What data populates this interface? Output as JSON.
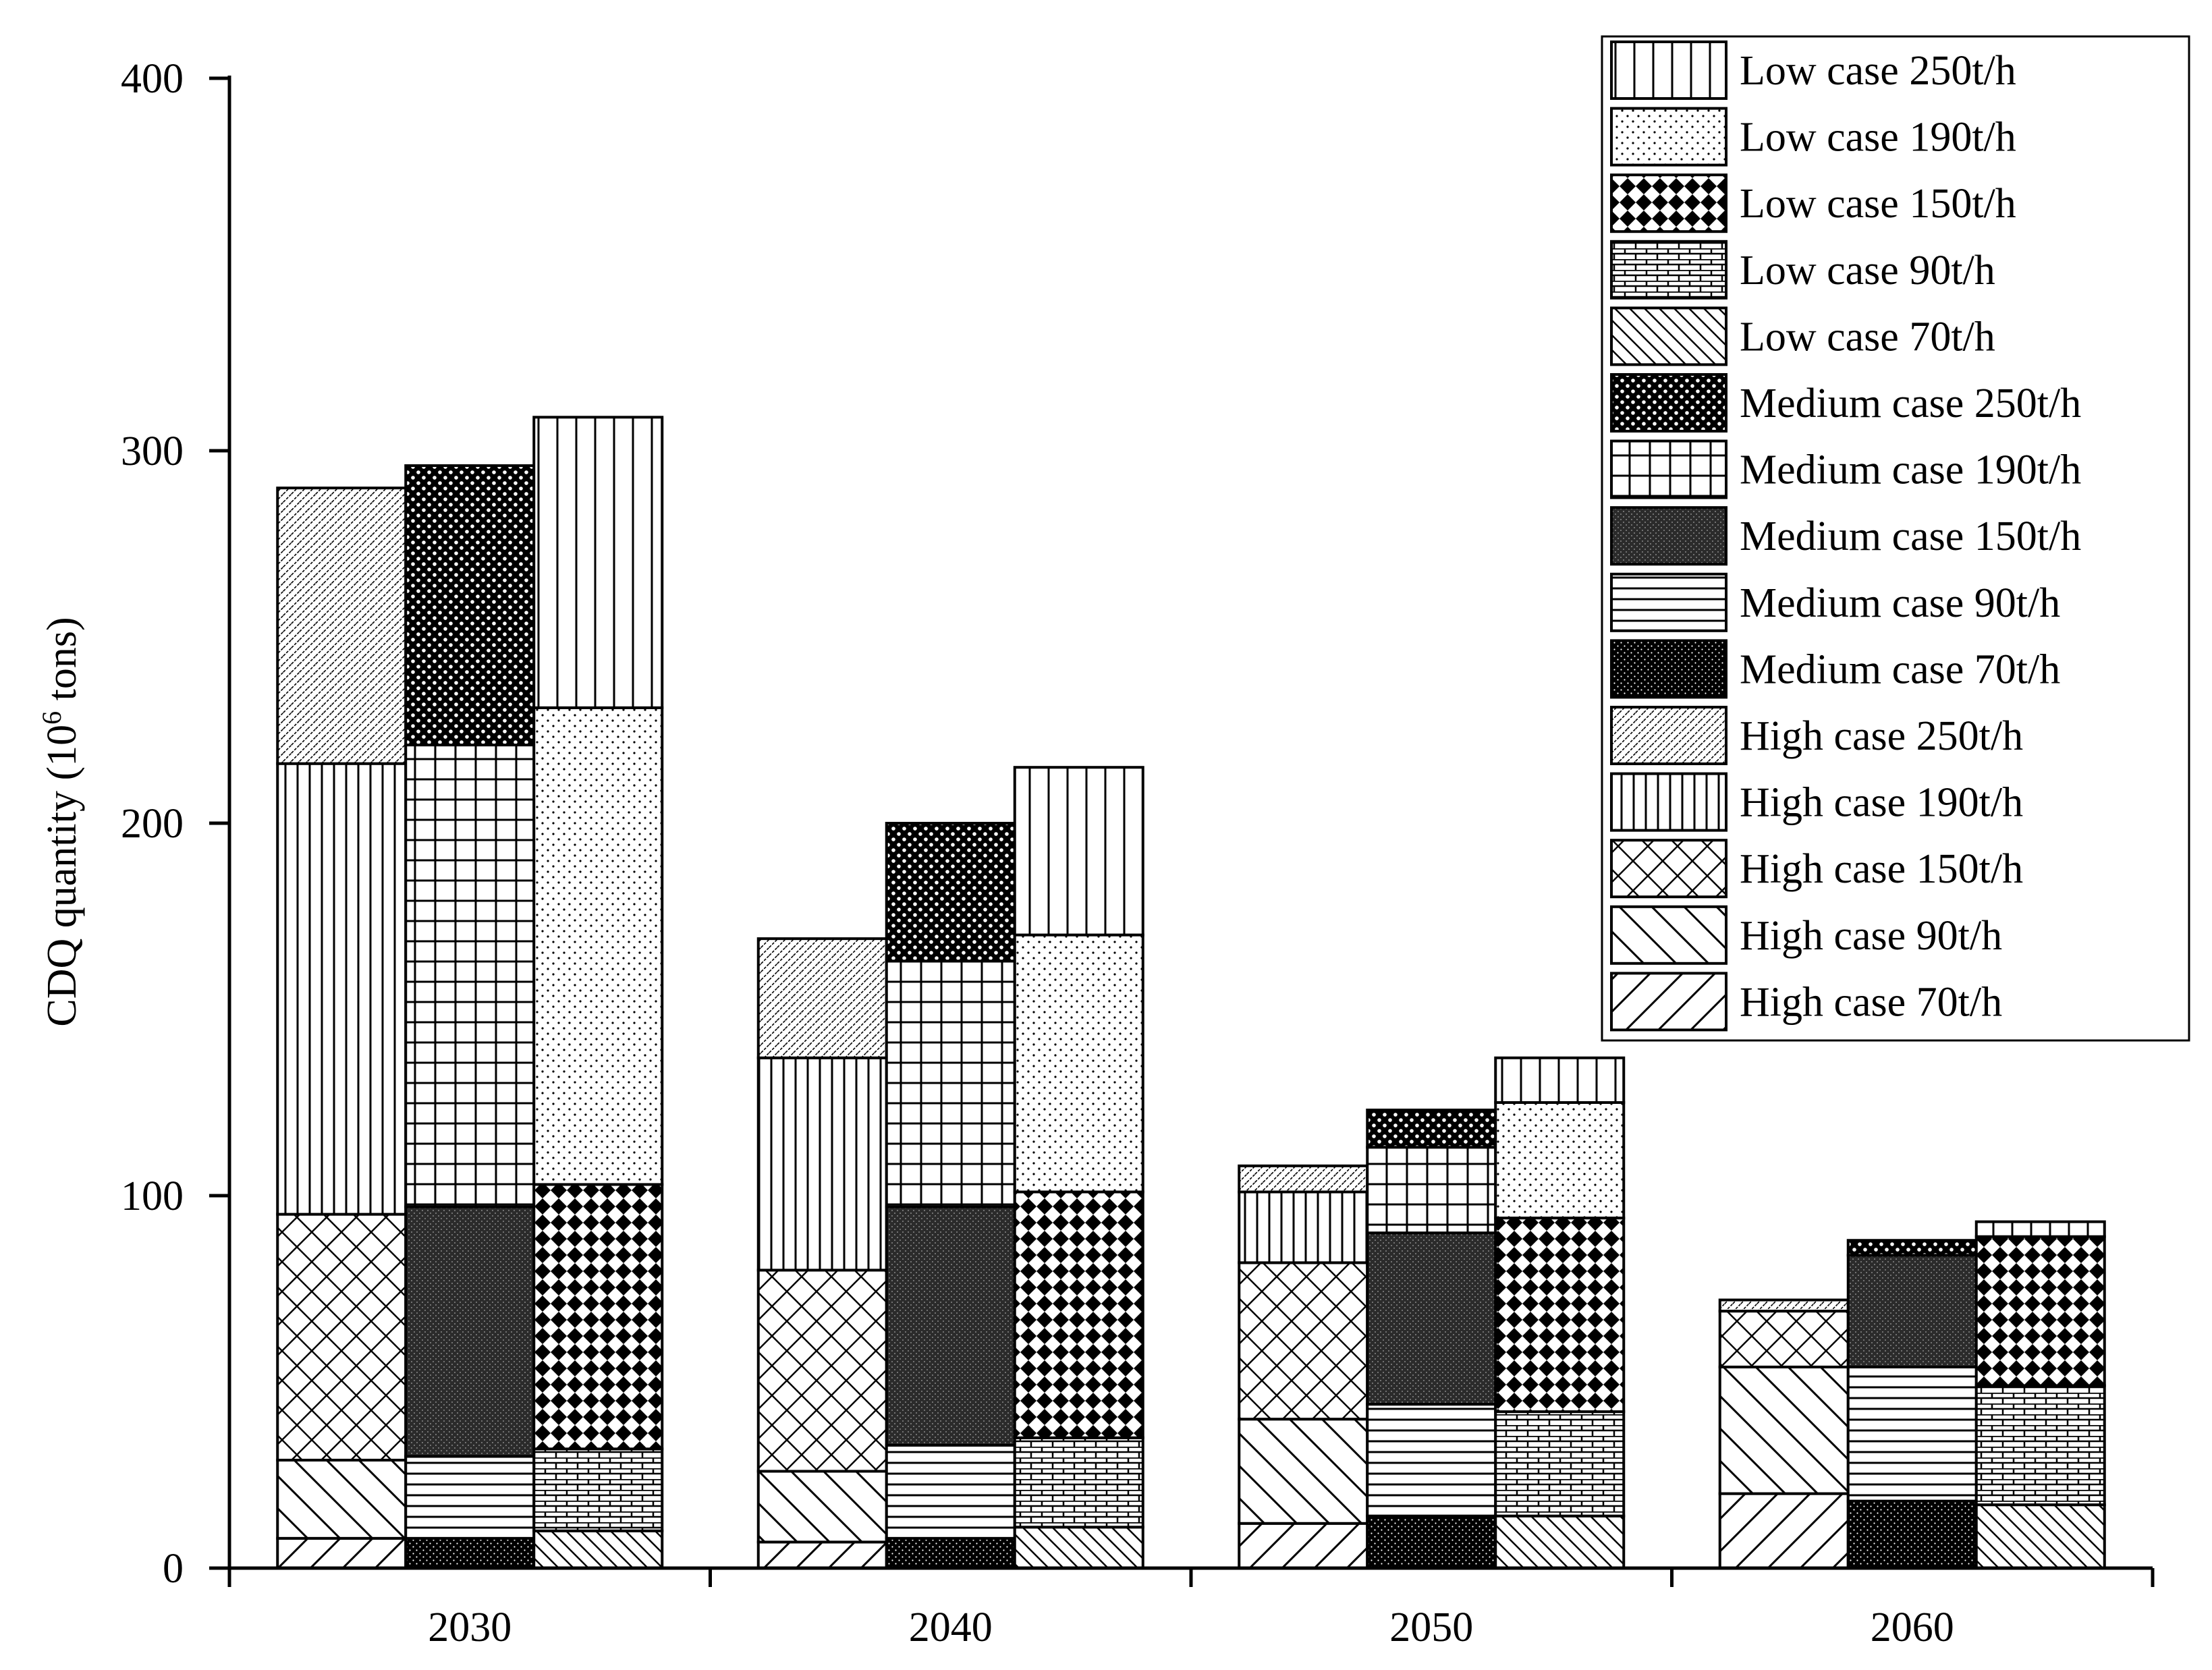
{
  "chart_data": {
    "type": "bar",
    "stacked": true,
    "title": "",
    "xlabel": "",
    "ylabel": "CDQ quantity (10",
    "ylabel_sup": "6",
    "ylabel_unit": " tons)",
    "ylim": [
      0,
      400
    ],
    "yticks": [
      "0",
      "100",
      "200",
      "300",
      "400"
    ],
    "categories": [
      "2030",
      "2040",
      "2050",
      "2060"
    ],
    "legend_position": "top-right",
    "groups": [
      {
        "name": "High case",
        "series": [
          {
            "name": "High case 70t/h",
            "pattern": "diag-fwd",
            "values": [
              8,
              7,
              12,
              20
            ]
          },
          {
            "name": "High case 90t/h",
            "pattern": "diag-back",
            "values": [
              21,
              19,
              28,
              34
            ]
          },
          {
            "name": "High case 150t/h",
            "pattern": "crosshatch",
            "values": [
              66,
              54,
              42,
              15
            ]
          },
          {
            "name": "High case 190t/h",
            "pattern": "vlines-dense",
            "values": [
              121,
              57,
              19,
              0
            ]
          },
          {
            "name": "High case 250t/h",
            "pattern": "fine-diag",
            "values": [
              74,
              32,
              7,
              3
            ]
          }
        ]
      },
      {
        "name": "Medium case",
        "series": [
          {
            "name": "Medium case 70t/h",
            "pattern": "black-dots",
            "values": [
              8,
              8,
              14,
              18
            ]
          },
          {
            "name": "Medium case 90t/h",
            "pattern": "hlines",
            "values": [
              22,
              25,
              30,
              36
            ]
          },
          {
            "name": "Medium case 150t/h",
            "pattern": "dark-stipple",
            "values": [
              67,
              64,
              46,
              30
            ]
          },
          {
            "name": "Medium case 190t/h",
            "pattern": "grid",
            "values": [
              124,
              66,
              23,
              0
            ]
          },
          {
            "name": "Medium case 250t/h",
            "pattern": "dark-polka",
            "values": [
              75,
              37,
              10,
              4
            ]
          }
        ]
      },
      {
        "name": "Low case",
        "series": [
          {
            "name": "Low case 70t/h",
            "pattern": "diag-back-dense",
            "values": [
              10,
              11,
              14,
              17
            ]
          },
          {
            "name": "Low case 90t/h",
            "pattern": "brick",
            "values": [
              22,
              24,
              28,
              32
            ]
          },
          {
            "name": "Low case 150t/h",
            "pattern": "checker",
            "values": [
              71,
              66,
              52,
              40
            ]
          },
          {
            "name": "Low case 190t/h",
            "pattern": "sparse-dots",
            "values": [
              128,
              69,
              31,
              0
            ]
          },
          {
            "name": "Low case 250t/h",
            "pattern": "vlines",
            "values": [
              78,
              45,
              12,
              4
            ]
          }
        ]
      }
    ],
    "legend": [
      {
        "label": "Low case 250t/h",
        "pattern": "vlines"
      },
      {
        "label": "Low case 190t/h",
        "pattern": "sparse-dots"
      },
      {
        "label": "Low case 150t/h",
        "pattern": "checker"
      },
      {
        "label": "Low case 90t/h",
        "pattern": "brick"
      },
      {
        "label": "Low case 70t/h",
        "pattern": "diag-back-dense"
      },
      {
        "label": "Medium case 250t/h",
        "pattern": "dark-polka"
      },
      {
        "label": "Medium case 190t/h",
        "pattern": "grid"
      },
      {
        "label": "Medium case 150t/h",
        "pattern": "dark-stipple"
      },
      {
        "label": "Medium case 90t/h",
        "pattern": "hlines"
      },
      {
        "label": "Medium case 70t/h",
        "pattern": "black-dots"
      },
      {
        "label": "High case 250t/h",
        "pattern": "fine-diag"
      },
      {
        "label": "High case 190t/h",
        "pattern": "vlines-dense"
      },
      {
        "label": "High case 150t/h",
        "pattern": "crosshatch"
      },
      {
        "label": "High case 90t/h",
        "pattern": "diag-back"
      },
      {
        "label": "High case 70t/h",
        "pattern": "diag-fwd"
      }
    ]
  }
}
